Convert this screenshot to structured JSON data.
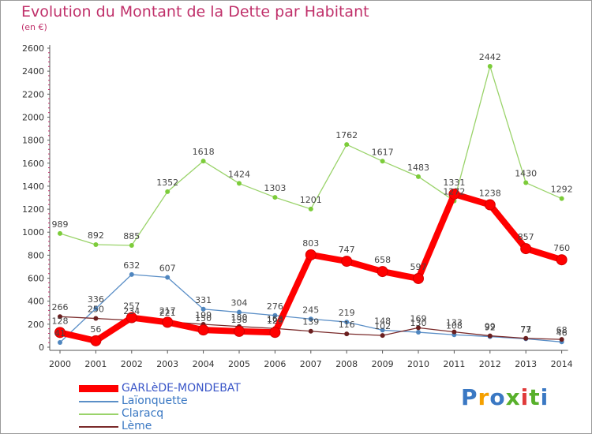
{
  "chart_data": {
    "type": "line",
    "title": "Evolution du Montant de la Dette par Habitant",
    "subtitle": "(en €)",
    "xlabel": "",
    "ylabel": "",
    "categories": [
      "2000",
      "2001",
      "2002",
      "2003",
      "2004",
      "2005",
      "2006",
      "2007",
      "2008",
      "2009",
      "2010",
      "2011",
      "2012",
      "2013",
      "2014"
    ],
    "ylim": [
      0,
      2600
    ],
    "yticks": [
      0,
      200,
      400,
      600,
      800,
      1000,
      1200,
      1400,
      1600,
      1800,
      2000,
      2200,
      2400,
      2600
    ],
    "grid": false,
    "legend_position": "bottom-left",
    "series": [
      {
        "name": "Laïonquette",
        "color": "#5b8fc7",
        "marker": "#4f86bf",
        "line_style": "thin",
        "values": [
          41,
          336,
          632,
          607,
          331,
          304,
          276,
          245,
          219,
          148,
          130,
          108,
          92,
          73,
          46
        ]
      },
      {
        "name": "Claracq",
        "color": "#9ad36a",
        "marker": "#7ccc3a",
        "line_style": "thin",
        "values": [
          989,
          892,
          885,
          1352,
          1618,
          1424,
          1303,
          1201,
          1762,
          1617,
          1483,
          1272,
          2442,
          1430,
          1292
        ]
      },
      {
        "name": "Lème",
        "color": "#7a2a2a",
        "marker": "#6a1f1f",
        "line_style": "thin",
        "values": [
          266,
          250,
          234,
          221,
          199,
          180,
          163,
          139,
          116,
          102,
          169,
          133,
          99,
          77,
          68
        ]
      },
      {
        "name": "GARLèDE-MONDEBAT",
        "color": "#ff0000",
        "marker": "#ff0000",
        "line_style": "thick",
        "values": [
          128,
          56,
          257,
          217,
          150,
          138,
          129,
          803,
          747,
          658,
          597,
          1331,
          1238,
          857,
          760
        ]
      }
    ],
    "legend": [
      "GARLèDE-MONDEBAT",
      "Laïonquette",
      "Claracq",
      "Lème"
    ]
  },
  "brand": {
    "letters": [
      "P",
      "r",
      "o",
      "x",
      "i",
      "t",
      "i"
    ],
    "colors": [
      "#3a78c3",
      "#f5a000",
      "#3a78c3",
      "#58b02b",
      "#e03a3a",
      "#58b02b",
      "#3a78c3"
    ]
  },
  "colors": {
    "title": "#c0306a",
    "axis_text": "#333333",
    "axis_line": "#555555",
    "minor_tick": "#c0306a",
    "value_label": "#444444"
  }
}
